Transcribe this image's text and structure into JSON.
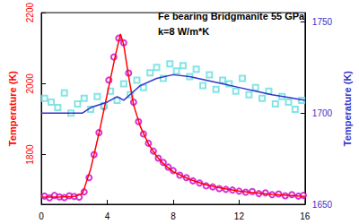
{
  "chart_data": {
    "type": "line",
    "annotations": [
      "Fe bearing Bridgmanite 55 GPa",
      "k=8 W/m*K"
    ],
    "y_label": "Temperature (K)",
    "y2_label": "Temperature (K)",
    "xlim": [
      0,
      16
    ],
    "xticks": [
      0,
      4,
      8,
      12,
      16
    ],
    "ylim": [
      1660,
      2200
    ],
    "yticks": [
      1800,
      2000,
      2200
    ],
    "y2lim": [
      1650,
      1755
    ],
    "y2ticks": [
      1650,
      1700,
      1750
    ],
    "grid": false,
    "series": [
      {
        "type": "scatter",
        "axis": "y",
        "color": "#cc00cc",
        "marker": "open_circle",
        "x": [
          0.2,
          0.5,
          0.8,
          1.1,
          1.4,
          1.7,
          2.0,
          2.3,
          2.6,
          2.9,
          3.2,
          3.5,
          3.8,
          4.1,
          4.4,
          4.7,
          5.0,
          5.3,
          5.6,
          5.9,
          6.2,
          6.5,
          6.8,
          7.1,
          7.4,
          7.7,
          8.0,
          8.4,
          8.8,
          9.2,
          9.6,
          10.0,
          10.4,
          10.8,
          11.2,
          11.6,
          12.0,
          12.4,
          12.8,
          13.2,
          13.6,
          14.0,
          14.4,
          14.8,
          15.2,
          15.6,
          15.9
        ],
        "values": [
          1683,
          1678,
          1685,
          1681,
          1679,
          1684,
          1682,
          1680,
          1695,
          1735,
          1800,
          1862,
          1935,
          2010,
          2075,
          2128,
          2115,
          2030,
          1948,
          1893,
          1858,
          1832,
          1810,
          1790,
          1778,
          1765,
          1755,
          1742,
          1735,
          1726,
          1720,
          1712,
          1709,
          1704,
          1702,
          1700,
          1697,
          1694,
          1696,
          1690,
          1692,
          1687,
          1689,
          1684,
          1687,
          1683,
          1685
        ]
      },
      {
        "type": "line",
        "axis": "y",
        "color": "#ff0000",
        "line_style": "solid",
        "x": [
          0,
          1,
          2,
          2.5,
          3,
          3.5,
          4,
          4.5,
          4.8,
          5.0,
          5.3,
          5.6,
          6,
          6.5,
          7,
          7.5,
          8,
          9,
          10,
          11,
          12,
          13,
          14,
          15,
          16
        ],
        "values": [
          1680,
          1680,
          1682,
          1690,
          1760,
          1860,
          1970,
          2080,
          2140,
          2110,
          2020,
          1940,
          1880,
          1830,
          1795,
          1770,
          1752,
          1730,
          1715,
          1705,
          1697,
          1692,
          1688,
          1685,
          1682
        ]
      },
      {
        "type": "scatter",
        "axis": "y2",
        "color": "#66dddd",
        "marker": "open_square",
        "x": [
          0.2,
          0.6,
          1.0,
          1.4,
          1.8,
          2.2,
          2.6,
          3.0,
          3.4,
          3.8,
          4.2,
          4.6,
          5.0,
          5.4,
          5.8,
          6.2,
          6.6,
          7.0,
          7.4,
          7.8,
          8.2,
          8.6,
          9.0,
          9.4,
          9.8,
          10.2,
          10.6,
          11.0,
          11.4,
          11.8,
          12.2,
          12.6,
          13.0,
          13.4,
          13.8,
          14.2,
          14.6,
          15.0,
          15.4,
          15.8
        ],
        "values": [
          1708,
          1706,
          1703,
          1711,
          1700,
          1705,
          1708,
          1702,
          1709,
          1704,
          1712,
          1707,
          1716,
          1710,
          1718,
          1714,
          1722,
          1725,
          1719,
          1727,
          1723,
          1726,
          1720,
          1724,
          1715,
          1721,
          1713,
          1718,
          1716,
          1712,
          1719,
          1710,
          1714,
          1708,
          1712,
          1705,
          1709,
          1706,
          1702,
          1707
        ]
      },
      {
        "type": "line",
        "axis": "y2",
        "color": "#3333cc",
        "line_style": "solid",
        "x": [
          0,
          2.5,
          3,
          4,
          4.6,
          5,
          5.5,
          6,
          7,
          8,
          9,
          10,
          11,
          12,
          13,
          14,
          15,
          16
        ],
        "values": [
          1700,
          1700,
          1703,
          1706,
          1709,
          1707,
          1711,
          1715,
          1719,
          1721,
          1720,
          1718,
          1716,
          1714,
          1712,
          1710,
          1708.5,
          1707
        ]
      }
    ]
  }
}
